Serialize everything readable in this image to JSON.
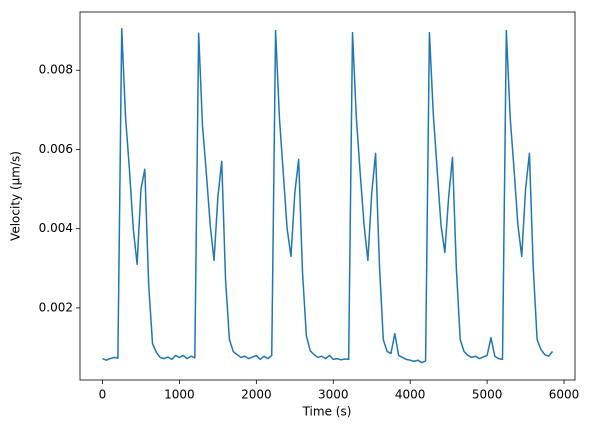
{
  "chart_data": {
    "type": "line",
    "xlabel": "Time (s)",
    "ylabel": "Velocity (µm/s)",
    "xlim": [
      -292.5,
      6142.5
    ],
    "ylim": [
      0.00018,
      0.00947
    ],
    "xticks": [
      0,
      1000,
      2000,
      3000,
      4000,
      5000,
      6000
    ],
    "yticks": [
      0.002,
      0.004,
      0.006,
      0.008
    ],
    "grid": false,
    "series": [
      {
        "color": "#1f77b4",
        "x": [
          0,
          50,
          100,
          150,
          200,
          250,
          300,
          350,
          400,
          450,
          500,
          550,
          600,
          650,
          700,
          750,
          800,
          850,
          900,
          950,
          1000,
          1050,
          1100,
          1150,
          1200,
          1250,
          1300,
          1350,
          1400,
          1450,
          1500,
          1550,
          1600,
          1650,
          1700,
          1750,
          1800,
          1850,
          1900,
          1950,
          2000,
          2050,
          2100,
          2150,
          2200,
          2250,
          2300,
          2350,
          2400,
          2450,
          2500,
          2550,
          2600,
          2650,
          2700,
          2750,
          2800,
          2850,
          2900,
          2950,
          3000,
          3050,
          3100,
          3150,
          3200,
          3250,
          3300,
          3350,
          3400,
          3450,
          3500,
          3550,
          3600,
          3650,
          3700,
          3750,
          3800,
          3850,
          3900,
          3950,
          4000,
          4050,
          4100,
          4150,
          4200,
          4250,
          4300,
          4350,
          4400,
          4450,
          4500,
          4550,
          4600,
          4650,
          4700,
          4750,
          4800,
          4850,
          4900,
          4950,
          5000,
          5050,
          5100,
          5150,
          5200,
          5250,
          5300,
          5350,
          5400,
          5450,
          5500,
          5550,
          5600,
          5650,
          5700,
          5750,
          5800,
          5850
        ],
        "values": [
          0.00072,
          0.00068,
          0.00072,
          0.00075,
          0.00073,
          0.00905,
          0.0068,
          0.0055,
          0.004,
          0.0031,
          0.005,
          0.0055,
          0.0026,
          0.0011,
          0.00088,
          0.00075,
          0.00072,
          0.00076,
          0.0007,
          0.0008,
          0.00075,
          0.0008,
          0.00072,
          0.00078,
          0.00074,
          0.00893,
          0.0066,
          0.0054,
          0.0041,
          0.0032,
          0.0048,
          0.0057,
          0.0027,
          0.0012,
          0.0009,
          0.00082,
          0.00075,
          0.00078,
          0.00072,
          0.00076,
          0.0008,
          0.0007,
          0.00078,
          0.00072,
          0.0008,
          0.009,
          0.0068,
          0.0054,
          0.004,
          0.0033,
          0.0049,
          0.00575,
          0.0029,
          0.0013,
          0.00092,
          0.00082,
          0.00075,
          0.00078,
          0.00072,
          0.0008,
          0.0007,
          0.00072,
          0.00069,
          0.00071,
          0.0007,
          0.00895,
          0.0068,
          0.0054,
          0.0041,
          0.0032,
          0.0049,
          0.0059,
          0.0031,
          0.0012,
          0.0009,
          0.00085,
          0.00135,
          0.0008,
          0.00075,
          0.0007,
          0.00068,
          0.00065,
          0.00068,
          0.00062,
          0.00066,
          0.00895,
          0.0069,
          0.0055,
          0.0041,
          0.0034,
          0.0048,
          0.0058,
          0.003,
          0.0012,
          0.0009,
          0.0008,
          0.00075,
          0.00078,
          0.00072,
          0.00076,
          0.0008,
          0.00125,
          0.00078,
          0.00072,
          0.0007,
          0.009,
          0.0068,
          0.0055,
          0.0041,
          0.0033,
          0.005,
          0.0059,
          0.003,
          0.0012,
          0.00095,
          0.00082,
          0.00078,
          0.0009
        ]
      }
    ]
  }
}
